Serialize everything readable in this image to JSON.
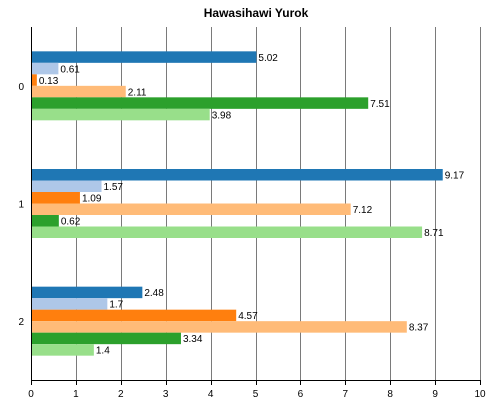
{
  "chart_data": {
    "type": "bar",
    "orientation": "horizontal",
    "title": "Hawasihawi Yurok",
    "xlabel": "",
    "ylabel": "",
    "xlim": [
      0,
      10
    ],
    "xticks": [
      "0",
      "1",
      "2",
      "3",
      "4",
      "5",
      "6",
      "7",
      "8",
      "9",
      "10"
    ],
    "grid": "vertical",
    "legend": "none",
    "categories": [
      "0",
      "1",
      "2"
    ],
    "series": [
      {
        "color": "#1f77b4",
        "values": [
          5.02,
          9.17,
          2.48
        ],
        "labels": [
          "5.02",
          "9.17",
          "2.48"
        ]
      },
      {
        "color": "#aec7e8",
        "values": [
          0.61,
          1.57,
          1.7
        ],
        "labels": [
          "0.61",
          "1.57",
          "1.7"
        ]
      },
      {
        "color": "#ff7f0e",
        "values": [
          0.13,
          1.09,
          4.57
        ],
        "labels": [
          "0.13",
          "1.09",
          "4.57"
        ]
      },
      {
        "color": "#ffbb78",
        "values": [
          2.11,
          7.12,
          8.37
        ],
        "labels": [
          "2.11",
          "7.12",
          "8.37"
        ]
      },
      {
        "color": "#2ca02c",
        "values": [
          7.51,
          0.62,
          3.34
        ],
        "labels": [
          "7.51",
          "0.62",
          "3.34"
        ]
      },
      {
        "color": "#98df8a",
        "values": [
          3.98,
          8.71,
          1.4
        ],
        "labels": [
          "3.98",
          "8.71",
          "1.4"
        ]
      }
    ]
  }
}
